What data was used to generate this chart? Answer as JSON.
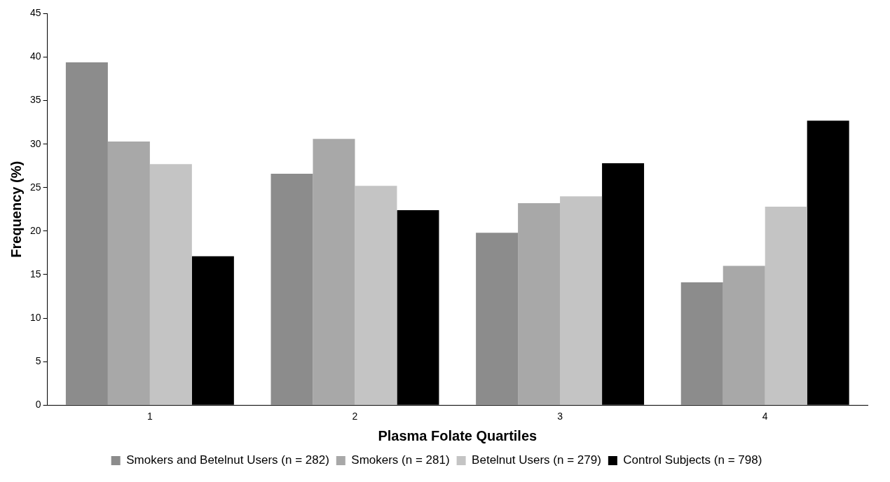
{
  "chart_data": {
    "type": "bar",
    "xlabel": "Plasma Folate Quartiles",
    "ylabel": "Frequency (%)",
    "categories": [
      "1",
      "2",
      "3",
      "4"
    ],
    "series": [
      {
        "name": "Smokers and Betelnut Users (n = 282)",
        "color": "#8c8c8c",
        "values": [
          39.4,
          26.6,
          19.8,
          14.1
        ]
      },
      {
        "name": "Smokers (n = 281)",
        "color": "#a8a8a8",
        "values": [
          30.3,
          30.6,
          23.2,
          16.0
        ]
      },
      {
        "name": "Betelnut Users (n = 279)",
        "color": "#c4c4c4",
        "values": [
          27.7,
          25.2,
          24.0,
          22.8
        ]
      },
      {
        "name": "Control Subjects (n = 798)",
        "color": "#000000",
        "values": [
          17.1,
          22.4,
          27.8,
          32.7
        ]
      }
    ],
    "ylim": [
      0,
      45
    ],
    "yticks": [
      0,
      5,
      10,
      15,
      20,
      25,
      30,
      35,
      40,
      45
    ],
    "grid": false,
    "legend": "bottom"
  }
}
